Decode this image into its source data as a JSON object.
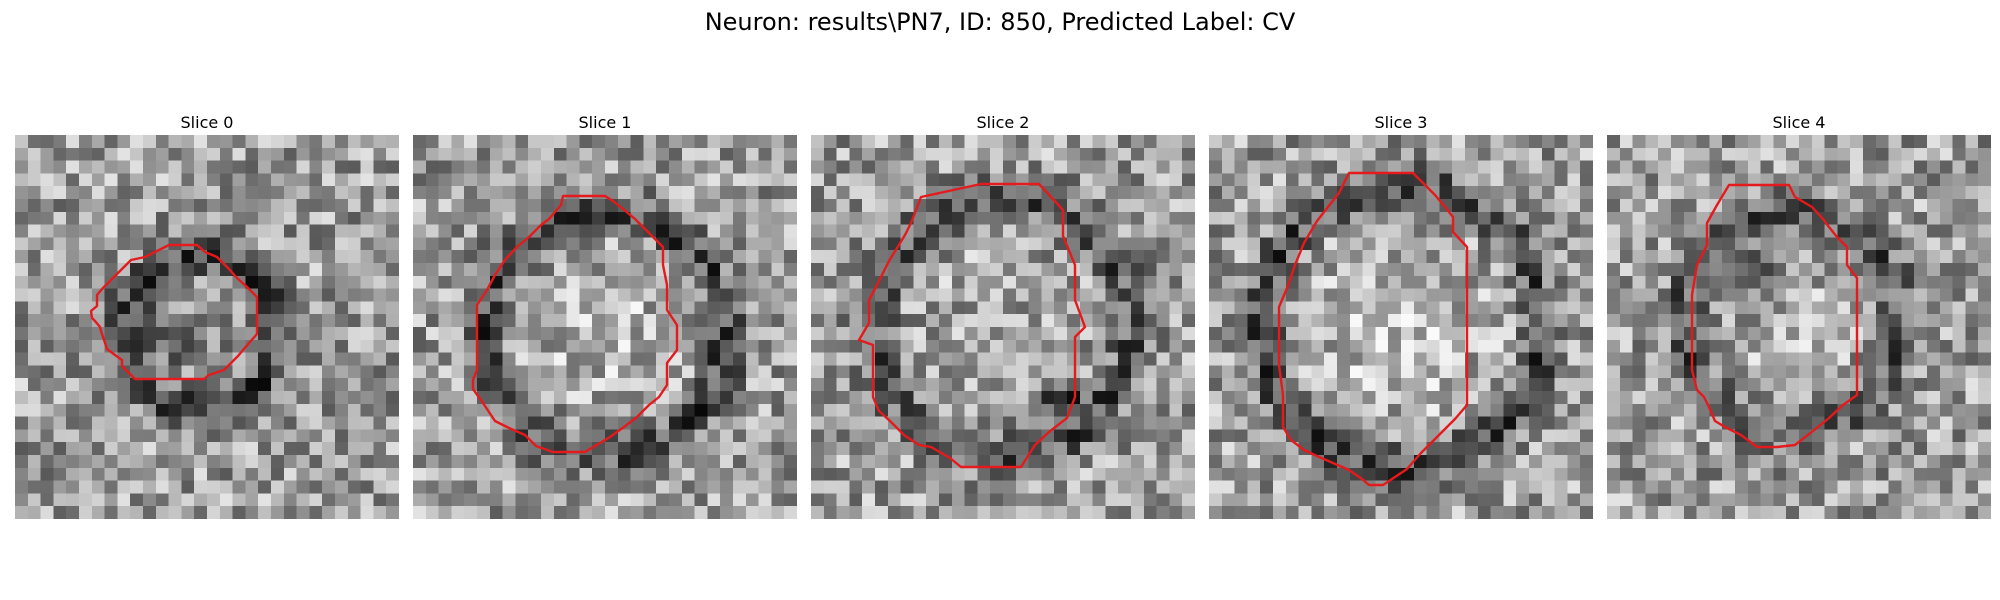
{
  "figure": {
    "title": "Neuron: results\\PN7, ID: 850, Predicted Label: CV"
  },
  "panels": [
    {
      "title": "Slice 0"
    },
    {
      "title": "Slice 1"
    },
    {
      "title": "Slice 2"
    },
    {
      "title": "Slice 3"
    },
    {
      "title": "Slice 4"
    }
  ],
  "colors": {
    "contour": "#e41a1c",
    "background": "#ffffff",
    "colormap": "gray"
  }
}
